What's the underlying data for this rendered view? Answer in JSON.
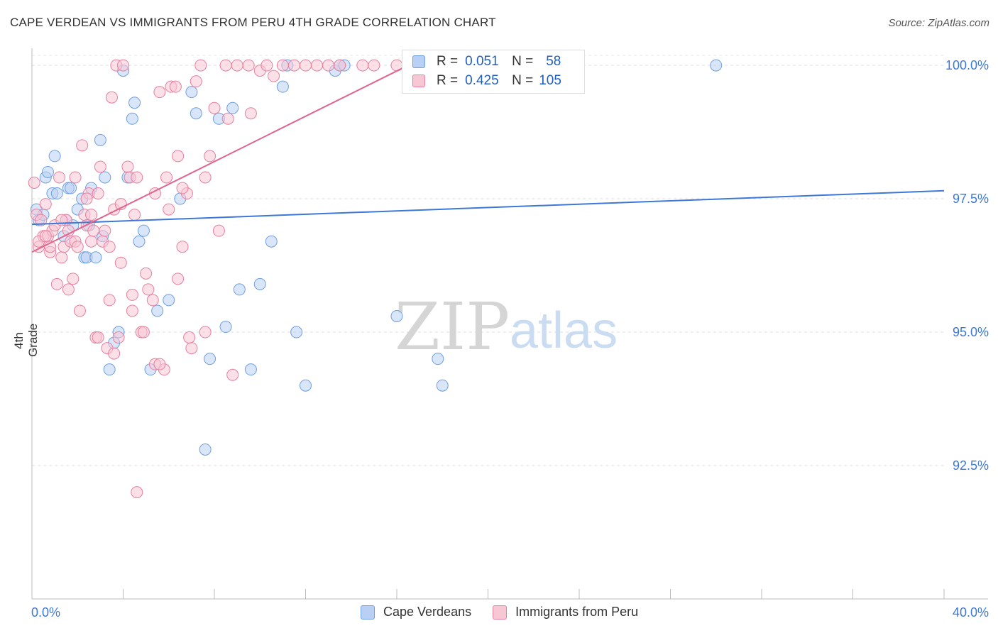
{
  "title": "CAPE VERDEAN VS IMMIGRANTS FROM PERU 4TH GRADE CORRELATION CHART",
  "source": "Source: ZipAtlas.com",
  "watermark": {
    "zip": "ZIP",
    "atlas": "atlas"
  },
  "legend": {
    "r_label": "R =",
    "n_label": "N =",
    "series": [
      {
        "name": "Cape Verdeans",
        "r": "0.051",
        "n": "58",
        "color": "#6f9fe0",
        "fill": "#b9cff3"
      },
      {
        "name": "Immigrants from Peru",
        "r": "0.425",
        "n": "105",
        "color": "#e77f9e",
        "fill": "#f8c7d6"
      }
    ]
  },
  "chart_data": {
    "type": "scatter",
    "title": "CAPE VERDEAN VS IMMIGRANTS FROM PERU 4TH GRADE CORRELATION CHART",
    "xlabel": "",
    "ylabel": "4th Grade",
    "xlim": [
      0,
      40
    ],
    "ylim": [
      90.0,
      100.4
    ],
    "x_tick_labels": [
      "0.0%",
      "40.0%"
    ],
    "y_ticks": [
      92.5,
      95.0,
      97.5,
      100.0
    ],
    "y_tick_labels": [
      "92.5%",
      "95.0%",
      "97.5%",
      "100.0%"
    ],
    "grid": true,
    "series": [
      {
        "name": "Cape Verdeans",
        "color": "#3d78d8",
        "trendline": {
          "x": [
            0,
            40
          ],
          "y": [
            97.02,
            97.65
          ]
        },
        "x": [
          0.2,
          0.3,
          0.5,
          0.6,
          0.7,
          0.9,
          1.0,
          1.1,
          1.4,
          1.5,
          1.6,
          1.7,
          1.8,
          2.0,
          2.2,
          2.3,
          2.4,
          2.5,
          2.6,
          2.8,
          3.0,
          3.1,
          3.2,
          3.4,
          3.6,
          3.8,
          4.0,
          4.2,
          4.4,
          4.5,
          4.7,
          4.9,
          5.2,
          5.5,
          6.0,
          6.5,
          7.0,
          7.2,
          7.6,
          7.8,
          8.2,
          8.5,
          8.8,
          9.1,
          9.6,
          10.0,
          10.5,
          11.0,
          11.2,
          11.6,
          12.0,
          13.3,
          13.5,
          13.7,
          16.0,
          17.8,
          18.0,
          30.0
        ],
        "y": [
          97.3,
          97.1,
          97.2,
          97.9,
          98.0,
          97.6,
          98.3,
          97.6,
          96.8,
          97.1,
          97.7,
          97.7,
          97.0,
          97.3,
          97.5,
          96.4,
          96.4,
          97.0,
          97.7,
          96.4,
          98.6,
          96.8,
          97.9,
          94.3,
          94.8,
          95.0,
          99.9,
          97.9,
          99.0,
          99.3,
          96.7,
          96.9,
          94.3,
          95.4,
          95.6,
          97.5,
          99.5,
          99.1,
          92.8,
          94.5,
          99.0,
          95.1,
          99.2,
          95.8,
          94.3,
          95.9,
          96.7,
          99.6,
          100.0,
          95.0,
          94.0,
          99.9,
          100.0,
          100.0,
          95.3,
          94.5,
          94.0,
          100.0
        ]
      },
      {
        "name": "Immigrants from Peru",
        "color": "#e0648c",
        "trendline": {
          "x": [
            0,
            16.5
          ],
          "y": [
            96.5,
            100.0
          ]
        },
        "x": [
          0.1,
          0.2,
          0.3,
          0.4,
          0.5,
          0.6,
          0.7,
          0.8,
          0.9,
          1.0,
          1.1,
          1.2,
          1.3,
          1.4,
          1.5,
          1.6,
          1.7,
          1.8,
          1.9,
          2.0,
          2.1,
          2.2,
          2.3,
          2.4,
          2.5,
          2.6,
          2.7,
          2.8,
          2.9,
          3.0,
          3.1,
          3.2,
          3.3,
          3.4,
          3.5,
          3.6,
          3.7,
          3.8,
          3.9,
          4.0,
          4.2,
          4.3,
          4.4,
          4.5,
          4.6,
          4.8,
          5.0,
          5.1,
          5.3,
          5.4,
          5.6,
          5.8,
          6.0,
          6.1,
          6.3,
          6.4,
          6.6,
          6.8,
          7.0,
          7.2,
          7.4,
          7.6,
          7.8,
          8.0,
          8.2,
          8.5,
          8.8,
          9.0,
          9.5,
          10.0,
          10.3,
          11.0,
          11.5,
          12.0,
          12.5,
          13.0,
          13.5,
          14.5,
          15.0,
          16.0,
          0.3,
          0.8,
          1.3,
          1.9,
          2.4,
          2.9,
          3.4,
          3.9,
          4.4,
          4.9,
          5.4,
          5.9,
          6.4,
          6.9,
          0.6,
          1.6,
          2.6,
          3.6,
          4.6,
          5.6,
          6.6,
          7.6,
          8.6,
          9.6,
          10.6
        ],
        "y": [
          97.8,
          97.2,
          96.6,
          97.1,
          96.8,
          97.4,
          96.8,
          96.5,
          96.9,
          97.0,
          95.9,
          97.9,
          96.4,
          96.6,
          97.1,
          96.9,
          96.7,
          96.0,
          96.7,
          96.6,
          95.4,
          98.5,
          97.2,
          97.0,
          97.6,
          96.7,
          96.9,
          94.9,
          97.6,
          98.1,
          96.7,
          96.9,
          94.7,
          95.6,
          99.4,
          97.3,
          100.0,
          94.9,
          97.4,
          100.0,
          98.1,
          97.9,
          95.7,
          97.2,
          97.9,
          95.0,
          96.1,
          95.8,
          95.6,
          97.6,
          99.5,
          94.3,
          97.3,
          99.6,
          99.6,
          98.3,
          96.6,
          97.6,
          94.7,
          99.7,
          100.0,
          95.0,
          98.3,
          99.2,
          96.9,
          100.0,
          94.2,
          100.0,
          100.0,
          99.9,
          100.0,
          100.0,
          100.0,
          100.0,
          100.0,
          100.0,
          100.0,
          100.0,
          100.0,
          100.0,
          96.7,
          96.6,
          97.1,
          97.9,
          97.5,
          94.9,
          96.6,
          96.3,
          95.4,
          95.0,
          94.4,
          97.9,
          96.0,
          94.9,
          96.8,
          95.8,
          97.2,
          94.6,
          92.0,
          94.4,
          97.7,
          97.9,
          99.0,
          99.1,
          99.8
        ]
      }
    ]
  }
}
